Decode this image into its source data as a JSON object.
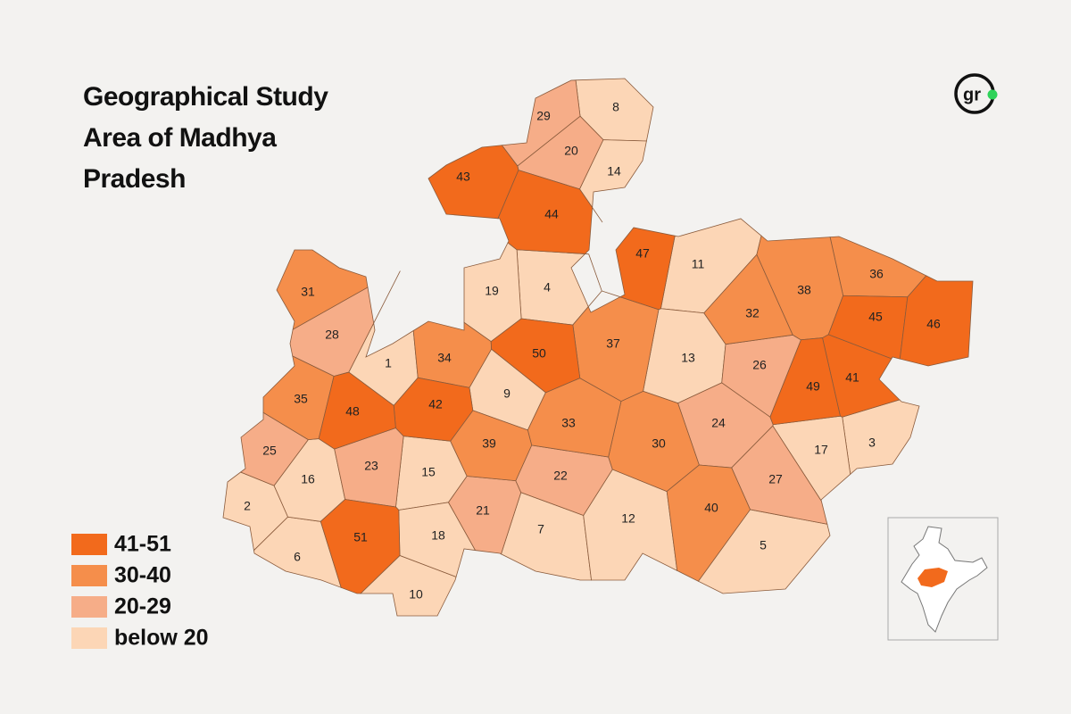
{
  "header": {
    "title": "Geographical Study Area of Madhya Pradesh",
    "logo": "gr"
  },
  "legend": {
    "items": [
      {
        "label": "41-51",
        "color": "#f26a1c"
      },
      {
        "label": "30-40",
        "color": "#f58e4b"
      },
      {
        "label": "20-29",
        "color": "#f6ad88"
      },
      {
        "label": "below 20",
        "color": "#fcd6b6"
      }
    ]
  },
  "map": {
    "districts": [
      1,
      2,
      3,
      4,
      5,
      6,
      7,
      8,
      9,
      10,
      11,
      12,
      13,
      14,
      15,
      16,
      17,
      18,
      19,
      20,
      21,
      22,
      23,
      24,
      25,
      26,
      27,
      28,
      29,
      30,
      31,
      32,
      33,
      34,
      35,
      36,
      37,
      38,
      39,
      40,
      41,
      42,
      43,
      44,
      45,
      46,
      47,
      48,
      49,
      50,
      51
    ]
  }
}
